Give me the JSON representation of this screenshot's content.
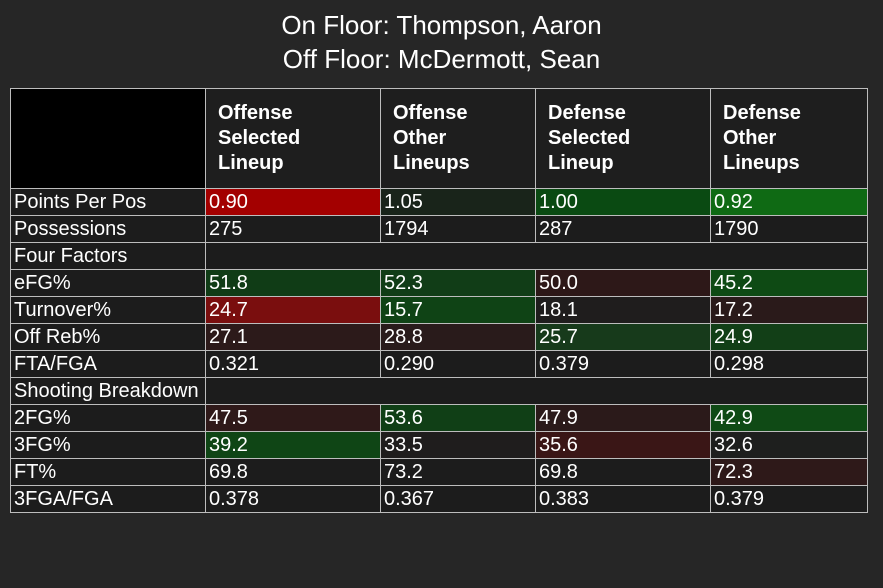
{
  "title": {
    "line1": "On Floor: Thompson, Aaron",
    "line2": "Off Floor: McDermott, Sean"
  },
  "chart_data": {
    "type": "table",
    "columns": [
      {
        "line1": "Offense",
        "line2": "Selected",
        "line3": "Lineup"
      },
      {
        "line1": "Offense",
        "line2": "Other",
        "line3": "Lineups"
      },
      {
        "line1": "Defense",
        "line2": "Selected",
        "line3": "Lineup"
      },
      {
        "line1": "Defense",
        "line2": "Other",
        "line3": "Lineups"
      }
    ],
    "rows": [
      {
        "kind": "data",
        "label": "Points Per Pos",
        "values": [
          "0.90",
          "1.05",
          "1.00",
          "0.92"
        ],
        "colors": [
          "#a30000",
          "#19241a",
          "#0a4a12",
          "#0f6a14"
        ]
      },
      {
        "kind": "data",
        "label": "Possessions",
        "values": [
          "275",
          "1794",
          "287",
          "1790"
        ],
        "colors": [
          "#1c1c1c",
          "#1c1c1c",
          "#1c1c1c",
          "#1c1c1c"
        ]
      },
      {
        "kind": "section",
        "label": "Four Factors"
      },
      {
        "kind": "data",
        "label": "eFG%",
        "values": [
          "51.8",
          "52.3",
          "50.0",
          "45.2"
        ],
        "colors": [
          "#103c16",
          "#113d17",
          "#2d1818",
          "#0e4a14"
        ]
      },
      {
        "kind": "data",
        "label": "Turnover%",
        "values": [
          "24.7",
          "15.7",
          "18.1",
          "17.2"
        ],
        "colors": [
          "#7a0e0e",
          "#0f4315",
          "#1f1d1d",
          "#2a1a1a"
        ]
      },
      {
        "kind": "data",
        "label": "Off Reb%",
        "values": [
          "27.1",
          "28.8",
          "25.7",
          "24.9"
        ],
        "colors": [
          "#2c1a1a",
          "#291b1b",
          "#173a1b",
          "#123f17"
        ]
      },
      {
        "kind": "data",
        "label": "FTA/FGA",
        "values": [
          "0.321",
          "0.290",
          "0.379",
          "0.298"
        ],
        "colors": [
          "#1c1c1c",
          "#1c1c1c",
          "#1c1c1c",
          "#1c1c1c"
        ]
      },
      {
        "kind": "section",
        "label": "Shooting Breakdown"
      },
      {
        "kind": "data",
        "label": "2FG%",
        "values": [
          "47.5",
          "53.6",
          "47.9",
          "42.9"
        ],
        "colors": [
          "#2f1919",
          "#103f16",
          "#2b1a1a",
          "#0f4a15"
        ]
      },
      {
        "kind": "data",
        "label": "3FG%",
        "values": [
          "39.2",
          "33.5",
          "35.6",
          "32.6"
        ],
        "colors": [
          "#0f4515",
          "#1f1d1d",
          "#3a1616",
          "#1e1f1e"
        ]
      },
      {
        "kind": "data",
        "label": "FT%",
        "values": [
          "69.8",
          "73.2",
          "69.8",
          "72.3"
        ],
        "colors": [
          "#1c1c1c",
          "#1c1c1c",
          "#1c1c1c",
          "#2e1919"
        ]
      },
      {
        "kind": "data",
        "label": "3FGA/FGA",
        "values": [
          "0.378",
          "0.367",
          "0.383",
          "0.379"
        ],
        "colors": [
          "#1c1c1c",
          "#1c1c1c",
          "#1c1c1c",
          "#1c1c1c"
        ]
      }
    ]
  }
}
